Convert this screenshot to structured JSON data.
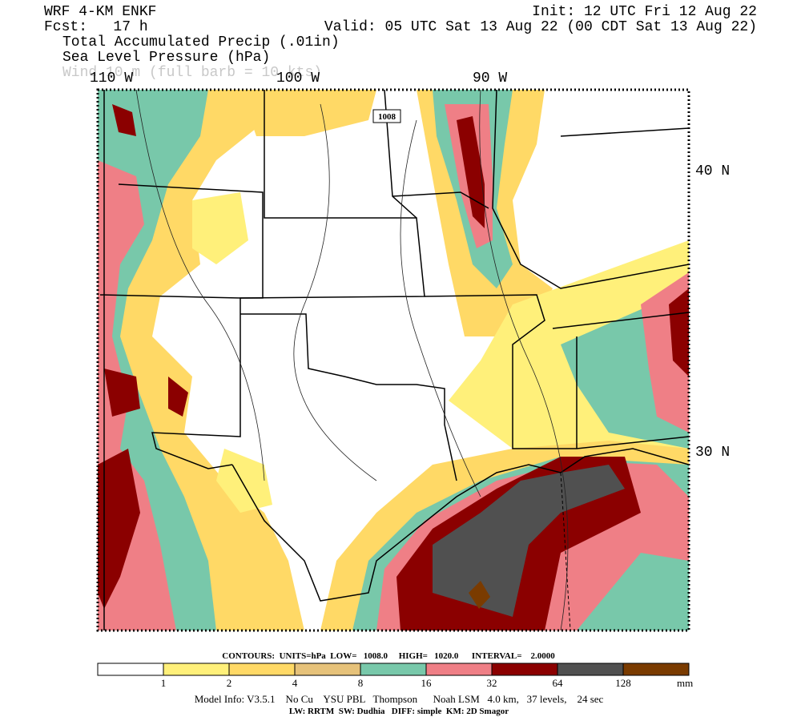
{
  "header": {
    "model": "WRF 4-KM ENKF",
    "forecast": "Fcst:   17 h",
    "init": "Init: 12 UTC Fri 12 Aug 22",
    "valid": "Valid: 05 UTC Sat 13 Aug 22 (00 CDT Sat 13 Aug 22)",
    "fields": [
      "Total Accumulated Precip (.01in)",
      "Sea Level Pressure (hPa)",
      "Wind 10 m (full barb = 10 kts)"
    ]
  },
  "map": {
    "longitude_labels": [
      "110 W",
      "100 W",
      "90 W"
    ],
    "latitude_labels": [
      "40 N",
      "30 N"
    ],
    "contour_label": "1008"
  },
  "contours": "CONTOURS:  UNITS=hPa  LOW=   1008.0     HIGH=   1020.0      INTERVAL=    2.0000",
  "colorbar": {
    "colors": [
      "#ffffff",
      "#fff07a",
      "#ffd966",
      "#e6c27a",
      "#78c8aa",
      "#ef7f86",
      "#8b0000",
      "#505050",
      "#7a3b00"
    ],
    "ticks": [
      1,
      2,
      4,
      8,
      16,
      32,
      64,
      128
    ],
    "unit": "mm"
  },
  "footer": [
    "Model Info: V3.5.1    No Cu    YSU PBL   Thompson      Noah LSM   4.0 km,   37 levels,    24 sec",
    "LW: RRTM  SW: Dudhia   DIFF: simple  KM: 2D Smagor"
  ]
}
